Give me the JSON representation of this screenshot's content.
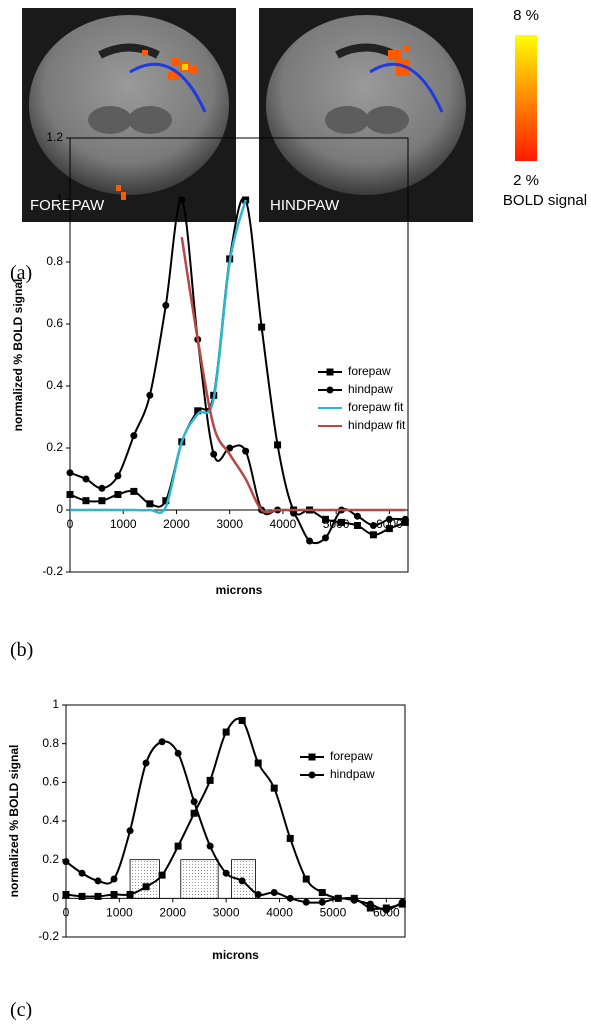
{
  "image_labels": [
    "FOREPAW",
    "HINDPAW"
  ],
  "colorbar": {
    "max_label": "8 %",
    "min_label": "2 %",
    "title": "BOLD signal"
  },
  "panel_labels": [
    "(a)",
    "(b)",
    "(c)"
  ],
  "chart_data": [
    {
      "type": "line",
      "xlabel": "microns",
      "ylabel": "normalized % BOLD signal",
      "x": [
        0,
        300,
        600,
        900,
        1200,
        1500,
        1800,
        2100,
        2400,
        2700,
        3000,
        3300,
        3600,
        3900,
        4200,
        4500,
        4800,
        5100,
        5400,
        5700,
        6000,
        6300
      ],
      "xlim": [
        0,
        6350
      ],
      "xticks": [
        0,
        1000,
        2000,
        3000,
        4000,
        5000,
        6000
      ],
      "ylim": [
        -0.2,
        1.2
      ],
      "yticks": [
        -0.2,
        0,
        0.2,
        0.4,
        0.6,
        0.8,
        1,
        1.2
      ],
      "series": [
        {
          "name": "forepaw",
          "color": "#000000",
          "marker": "square",
          "values": [
            0.05,
            0.03,
            0.03,
            0.05,
            0.06,
            0.02,
            0.03,
            0.22,
            0.32,
            0.37,
            0.81,
            1.0,
            0.59,
            0.21,
            0.0,
            0.0,
            -0.03,
            -0.04,
            -0.05,
            -0.08,
            -0.06,
            -0.04
          ]
        },
        {
          "name": "hindpaw",
          "color": "#000000",
          "marker": "circle",
          "values": [
            0.12,
            0.1,
            0.07,
            0.11,
            0.24,
            0.37,
            0.66,
            1.0,
            0.55,
            0.18,
            0.2,
            0.19,
            0.0,
            0.0,
            -0.01,
            -0.1,
            -0.09,
            0.0,
            -0.02,
            -0.05,
            -0.03,
            -0.03
          ]
        },
        {
          "name": "forepaw fit",
          "color": "#2ab7cf",
          "marker": null,
          "values": [
            0,
            0,
            0,
            0,
            0,
            0,
            0.01,
            0.22,
            0.31,
            0.36,
            0.8,
            1.0,
            null,
            null,
            null,
            null,
            null,
            null,
            null,
            null,
            null,
            null
          ]
        },
        {
          "name": "hindpaw fit",
          "color": "#b84646",
          "marker": null,
          "values": [
            null,
            null,
            null,
            null,
            null,
            null,
            null,
            0.88,
            0.55,
            0.27,
            0.18,
            0.1,
            0,
            0,
            0,
            0,
            0,
            0,
            0,
            0,
            0,
            0
          ]
        }
      ]
    },
    {
      "type": "line",
      "xlabel": "microns",
      "ylabel": "normalized % BOLD signal",
      "x": [
        0,
        300,
        600,
        900,
        1200,
        1500,
        1800,
        2100,
        2400,
        2700,
        3000,
        3300,
        3600,
        3900,
        4200,
        4500,
        4800,
        5100,
        5400,
        5700,
        6000,
        6300
      ],
      "xlim": [
        0,
        6350
      ],
      "xticks": [
        0,
        1000,
        2000,
        3000,
        4000,
        5000,
        6000
      ],
      "ylim": [
        -0.2,
        1
      ],
      "yticks": [
        -0.2,
        0,
        0.2,
        0.4,
        0.6,
        0.8,
        1
      ],
      "series": [
        {
          "name": "forepaw",
          "color": "#000000",
          "marker": "square",
          "values": [
            0.02,
            0.01,
            0.01,
            0.02,
            0.02,
            0.06,
            0.12,
            0.27,
            0.44,
            0.61,
            0.86,
            0.92,
            0.7,
            0.57,
            0.31,
            0.1,
            0.03,
            0.0,
            0.0,
            -0.05,
            -0.05,
            -0.03
          ]
        },
        {
          "name": "hindpaw",
          "color": "#000000",
          "marker": "circle",
          "values": [
            0.19,
            0.13,
            0.09,
            0.1,
            0.35,
            0.7,
            0.81,
            0.75,
            0.5,
            0.27,
            0.13,
            0.09,
            0.02,
            0.03,
            0.0,
            -0.02,
            -0.02,
            0.0,
            -0.01,
            -0.03,
            -0.06,
            -0.02
          ]
        }
      ],
      "regions": [
        {
          "x": [
            1200,
            1750
          ],
          "y": [
            0,
            0.2
          ]
        },
        {
          "x": [
            2150,
            2850
          ],
          "y": [
            0,
            0.2
          ]
        },
        {
          "x": [
            3100,
            3550
          ],
          "y": [
            0,
            0.2
          ]
        }
      ]
    }
  ]
}
